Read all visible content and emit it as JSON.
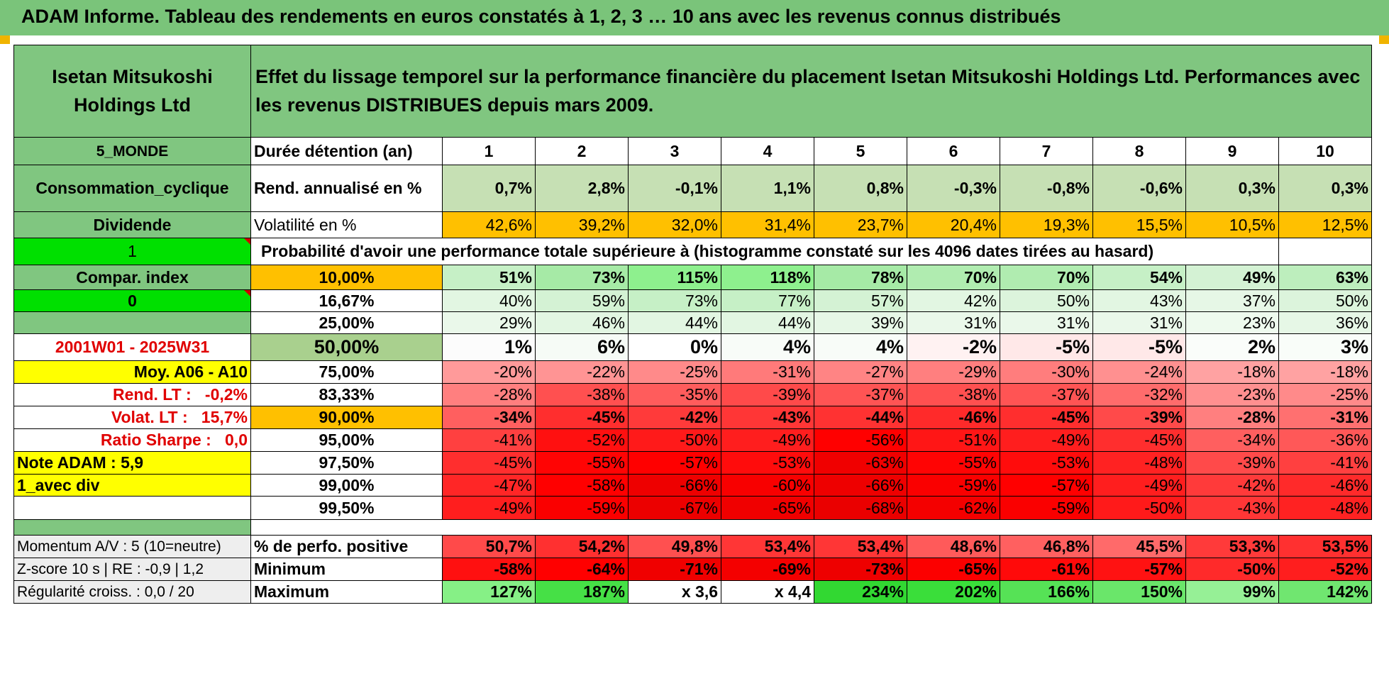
{
  "title": "ADAM Informe. Tableau des rendements en euros constatés à 1, 2, 3 … 10 ans avec les revenus connus distribués",
  "header": {
    "company": "Isetan Mitsukoshi Holdings Ltd",
    "description": "Effet du lissage temporel sur la performance financière du placement Isetan Mitsukoshi Holdings Ltd. Performances avec les revenus DISTRIBUES depuis mars 2009."
  },
  "side": {
    "zone": "5_MONDE",
    "sector": "Consommation_cyclique",
    "type": "Dividende",
    "input1": "1",
    "compar": "Compar. index",
    "input2": "0",
    "period": "2001W01 - 2025W31",
    "moy": "Moy. A06 - A10",
    "rend_lt_label": "Rend. LT :",
    "rend_lt_value": "-0,2%",
    "volat_lt_label": "Volat. LT :",
    "volat_lt_value": "15,7%",
    "sharpe_label": "Ratio Sharpe :",
    "sharpe_value": "0,0",
    "note": "Note ADAM : 5,9",
    "avec_div": "1_avec div"
  },
  "durations": {
    "label": "Durée détention (an)",
    "years": [
      "1",
      "2",
      "3",
      "4",
      "5",
      "6",
      "7",
      "8",
      "9",
      "10"
    ]
  },
  "rend": {
    "label": "Rend. annualisé en %",
    "values": [
      "0,7%",
      "2,8%",
      "-0,1%",
      "1,1%",
      "0,8%",
      "-0,3%",
      "-0,8%",
      "-0,6%",
      "0,3%",
      "0,3%"
    ]
  },
  "volat": {
    "label": "Volatilité en %",
    "values": [
      "42,6%",
      "39,2%",
      "32,0%",
      "31,4%",
      "23,7%",
      "20,4%",
      "19,3%",
      "15,5%",
      "10,5%",
      "12,5%"
    ]
  },
  "prob_title": "Probabilité d'avoir une performance totale supérieure à (histogramme constaté sur les 4096 dates tirées au hasard)",
  "prob_rows": [
    {
      "pct": "10,00%",
      "values": [
        "51%",
        "73%",
        "115%",
        "118%",
        "78%",
        "70%",
        "70%",
        "54%",
        "49%",
        "63%"
      ],
      "colors": [
        "#c6f0c6",
        "#a6eaa6",
        "#8ef08e",
        "#8ef08e",
        "#a6eaa6",
        "#b0ecb0",
        "#b0ecb0",
        "#c6f0c6",
        "#d4f2d4",
        "#bdeebd"
      ],
      "pct_bg": "#ffc000",
      "bold": true
    },
    {
      "pct": "16,67%",
      "values": [
        "40%",
        "59%",
        "73%",
        "77%",
        "57%",
        "42%",
        "50%",
        "43%",
        "37%",
        "50%"
      ],
      "colors": [
        "#e2f6e2",
        "#d4f2d4",
        "#c6f0c6",
        "#c6f0c6",
        "#d4f2d4",
        "#e2f6e2",
        "#dcf4dc",
        "#e2f6e2",
        "#e6f7e6",
        "#dcf4dc"
      ],
      "pct_bg": "#ffffff",
      "bold": false
    },
    {
      "pct": "25,00%",
      "values": [
        "29%",
        "46%",
        "44%",
        "44%",
        "39%",
        "31%",
        "31%",
        "31%",
        "23%",
        "36%"
      ],
      "colors": [
        "#eaf8ea",
        "#e2f6e2",
        "#e2f6e2",
        "#e2f6e2",
        "#e6f7e6",
        "#eaf8ea",
        "#eaf8ea",
        "#eaf8ea",
        "#eefaee",
        "#e6f7e6"
      ],
      "pct_bg": "#ffffff",
      "bold": false
    },
    {
      "pct": "50,00%",
      "values": [
        "1%",
        "6%",
        "0%",
        "4%",
        "4%",
        "-2%",
        "-5%",
        "-5%",
        "2%",
        "3%"
      ],
      "colors": [
        "#fcfcfc",
        "#f6fbf6",
        "#ffffff",
        "#f8fcf8",
        "#f8fcf8",
        "#fff2f2",
        "#ffe8e8",
        "#ffe8e8",
        "#fafdfa",
        "#f9fdf9"
      ],
      "pct_bg": "#a9d08e",
      "bold": true,
      "big": true
    },
    {
      "pct": "75,00%",
      "values": [
        "-20%",
        "-22%",
        "-25%",
        "-31%",
        "-27%",
        "-29%",
        "-30%",
        "-24%",
        "-18%",
        "-18%"
      ],
      "colors": [
        "#ff9a9a",
        "#ff9494",
        "#ff8a8a",
        "#ff7a7a",
        "#ff8484",
        "#ff7f7f",
        "#ff7d7d",
        "#ff9090",
        "#ffa2a2",
        "#ffa2a2"
      ],
      "pct_bg": "#ffffff",
      "bold": false
    },
    {
      "pct": "83,33%",
      "values": [
        "-28%",
        "-38%",
        "-35%",
        "-39%",
        "-37%",
        "-38%",
        "-37%",
        "-32%",
        "-23%",
        "-25%"
      ],
      "colors": [
        "#ff7f7f",
        "#ff5050",
        "#ff5c5c",
        "#ff4a4a",
        "#ff5454",
        "#ff5050",
        "#ff5454",
        "#ff6c6c",
        "#ff9090",
        "#ff8a8a"
      ],
      "pct_bg": "#ffffff",
      "bold": false
    },
    {
      "pct": "90,00%",
      "values": [
        "-34%",
        "-45%",
        "-42%",
        "-43%",
        "-44%",
        "-46%",
        "-45%",
        "-39%",
        "-28%",
        "-31%"
      ],
      "colors": [
        "#ff5f5f",
        "#ff2e2e",
        "#ff3a3a",
        "#ff3636",
        "#ff3232",
        "#ff2a2a",
        "#ff2e2e",
        "#ff4a4a",
        "#ff7f7f",
        "#ff7070"
      ],
      "pct_bg": "#ffc000",
      "bold": true
    },
    {
      "pct": "95,00%",
      "values": [
        "-41%",
        "-52%",
        "-50%",
        "-49%",
        "-56%",
        "-51%",
        "-49%",
        "-45%",
        "-34%",
        "-36%"
      ],
      "colors": [
        "#ff4040",
        "#ff1010",
        "#ff1a1a",
        "#ff1e1e",
        "#ff0000",
        "#ff1616",
        "#ff1e1e",
        "#ff2e2e",
        "#ff5f5f",
        "#ff5858"
      ],
      "pct_bg": "#ffffff",
      "bold": false
    },
    {
      "pct": "97,50%",
      "values": [
        "-45%",
        "-55%",
        "-57%",
        "-53%",
        "-63%",
        "-55%",
        "-53%",
        "-48%",
        "-39%",
        "-41%"
      ],
      "colors": [
        "#ff2e2e",
        "#ff0404",
        "#ff0000",
        "#ff0c0c",
        "#f00000",
        "#ff0404",
        "#ff0c0c",
        "#ff2222",
        "#ff4a4a",
        "#ff4040"
      ],
      "pct_bg": "#ffffff",
      "bold": false
    },
    {
      "pct": "99,00%",
      "values": [
        "-47%",
        "-58%",
        "-66%",
        "-60%",
        "-66%",
        "-59%",
        "-57%",
        "-49%",
        "-42%",
        "-46%"
      ],
      "colors": [
        "#ff2626",
        "#ff0000",
        "#ee0000",
        "#f80000",
        "#ee0000",
        "#fa0000",
        "#ff0000",
        "#ff1e1e",
        "#ff3a3a",
        "#ff2a2a"
      ],
      "pct_bg": "#ffffff",
      "bold": false
    },
    {
      "pct": "99,50%",
      "values": [
        "-49%",
        "-59%",
        "-67%",
        "-65%",
        "-68%",
        "-62%",
        "-59%",
        "-50%",
        "-43%",
        "-48%"
      ],
      "colors": [
        "#ff1e1e",
        "#fa0000",
        "#ec0000",
        "#f00000",
        "#ea0000",
        "#f40000",
        "#fa0000",
        "#ff1a1a",
        "#ff3636",
        "#ff2222"
      ],
      "pct_bg": "#ffffff",
      "bold": false
    }
  ],
  "bottom": {
    "momentum": "Momentum A/V : 5 (10=neutre)",
    "zscore": "Z-score 10 s | RE : -0,9 | 1,2",
    "regularite": "Régularité croiss. : 0,0 / 20",
    "perf_label": "% de perfo. positive",
    "perf_values": [
      "50,7%",
      "54,2%",
      "49,8%",
      "53,4%",
      "53,4%",
      "48,6%",
      "46,8%",
      "45,5%",
      "53,3%",
      "53,5%"
    ],
    "min_label": "Minimum",
    "min_values": [
      "-58%",
      "-64%",
      "-71%",
      "-69%",
      "-73%",
      "-65%",
      "-61%",
      "-57%",
      "-50%",
      "-52%"
    ],
    "max_label": "Maximum",
    "max_values": [
      "127%",
      "187%",
      "x 3,6",
      "x 4,4",
      "234%",
      "202%",
      "166%",
      "150%",
      "99%",
      "142%"
    ]
  },
  "colors": {
    "title_bg": "#7ac47a",
    "header_green": "#80c680",
    "rend_bg": "#c6e0b4",
    "volat_bg": "#ffc000",
    "input_green": "#00e000",
    "note_yellow": "#ffff00",
    "label_red": "#e00000",
    "perf_colors": [
      "#ff4a4a",
      "#ff3030",
      "#ff5050",
      "#ff3636",
      "#ff3636",
      "#ff5a5a",
      "#ff6060",
      "#ff6a6a",
      "#ff3a3a",
      "#ff3030"
    ],
    "min_colors": [
      "#ff1010",
      "#ff0000",
      "#f00000",
      "#f40000",
      "#ee0000",
      "#fc0000",
      "#ff0a0a",
      "#ff1212",
      "#ff2a2a",
      "#ff1e1e"
    ],
    "max_colors": [
      "#86f086",
      "#46e046",
      "#ffffff",
      "#ffffff",
      "#32d832",
      "#3ade3a",
      "#56e256",
      "#6ae66a",
      "#96f096",
      "#70e670"
    ]
  }
}
